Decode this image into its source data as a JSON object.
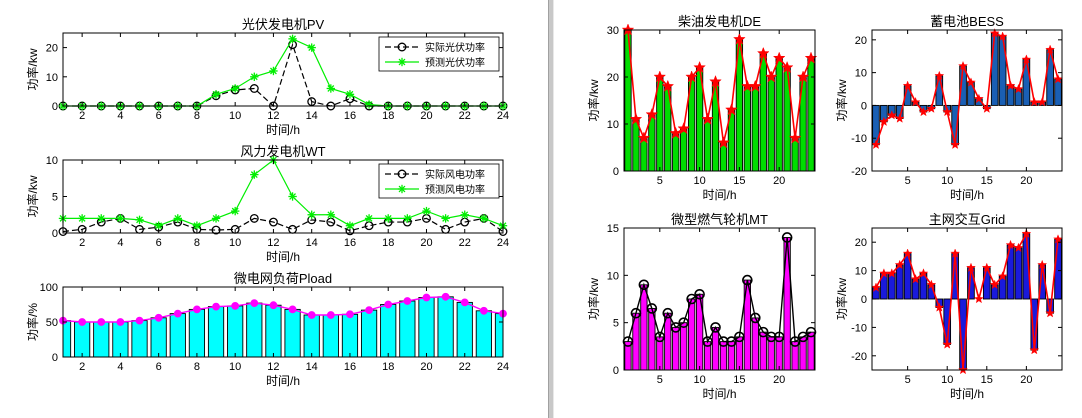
{
  "chart_data": [
    {
      "id": "pv",
      "type": "line",
      "title": "光伏发电机PV",
      "xlabel": "时间/h",
      "ylabel": "功率/kw",
      "x": [
        1,
        2,
        3,
        4,
        5,
        6,
        7,
        8,
        9,
        10,
        11,
        12,
        13,
        14,
        15,
        16,
        17,
        18,
        19,
        20,
        21,
        22,
        23,
        24
      ],
      "xlim": [
        1,
        24
      ],
      "ylim": [
        0,
        25
      ],
      "xticks": [
        2,
        4,
        6,
        8,
        10,
        12,
        14,
        16,
        18,
        20,
        22,
        24
      ],
      "yticks": [
        0,
        10,
        20
      ],
      "legend": "top-right",
      "series": [
        {
          "name": "实际光伏功率",
          "marker": "circle",
          "color": "#000000",
          "dash": true,
          "values": [
            0,
            0,
            0,
            0,
            0,
            0,
            0,
            0,
            3.5,
            5.5,
            6,
            0,
            21,
            1.5,
            0,
            2.5,
            0,
            0,
            0,
            0,
            0,
            0,
            0,
            0
          ]
        },
        {
          "name": "预测光伏功率",
          "marker": "star",
          "color": "#00ee00",
          "dash": false,
          "values": [
            0,
            0,
            0,
            0,
            0,
            0,
            0,
            0,
            4,
            6,
            10,
            12,
            23,
            20,
            6,
            4,
            0.5,
            0,
            0,
            0,
            0,
            0,
            0,
            0
          ]
        }
      ]
    },
    {
      "id": "wt",
      "type": "line",
      "title": "风力发电机WT",
      "xlabel": "时间/h",
      "ylabel": "功率/kw",
      "x": [
        1,
        2,
        3,
        4,
        5,
        6,
        7,
        8,
        9,
        10,
        11,
        12,
        13,
        14,
        15,
        16,
        17,
        18,
        19,
        20,
        21,
        22,
        23,
        24
      ],
      "xlim": [
        1,
        24
      ],
      "ylim": [
        0,
        10
      ],
      "xticks": [
        2,
        4,
        6,
        8,
        10,
        12,
        14,
        16,
        18,
        20,
        22,
        24
      ],
      "yticks": [
        0,
        5,
        10
      ],
      "legend": "top-right",
      "series": [
        {
          "name": "实际风电功率",
          "marker": "circle",
          "color": "#000000",
          "dash": true,
          "values": [
            0.2,
            0.5,
            1.5,
            2,
            0.5,
            0.8,
            1.5,
            0.5,
            0.4,
            0.5,
            2,
            1.5,
            0.5,
            1.8,
            1.5,
            0.3,
            1,
            1.5,
            1.5,
            2,
            0.5,
            1.5,
            2,
            0.2
          ]
        },
        {
          "name": "预测风电功率",
          "marker": "star",
          "color": "#00ee00",
          "dash": false,
          "values": [
            2,
            2,
            2,
            2,
            1.8,
            1,
            2,
            1,
            2,
            3,
            8,
            10,
            5,
            2.5,
            2.5,
            1,
            2,
            2,
            2,
            3,
            2,
            2.5,
            2,
            1
          ]
        }
      ]
    },
    {
      "id": "pload",
      "type": "bar",
      "title": "微电网负荷Pload",
      "xlabel": "时间/h",
      "ylabel": "功率/%",
      "x": [
        1,
        2,
        3,
        4,
        5,
        6,
        7,
        8,
        9,
        10,
        11,
        12,
        13,
        14,
        15,
        16,
        17,
        18,
        19,
        20,
        21,
        22,
        23,
        24
      ],
      "xlim": [
        1,
        24
      ],
      "ylim": [
        0,
        100
      ],
      "xticks": [
        2,
        4,
        6,
        8,
        10,
        12,
        14,
        16,
        18,
        20,
        22,
        24
      ],
      "yticks": [
        0,
        50,
        100
      ],
      "bar_color": "#00ffff",
      "line_color": "#ff00ff",
      "values": [
        52,
        50,
        50,
        50,
        52,
        56,
        62,
        68,
        72,
        73,
        77,
        74,
        68,
        60,
        60,
        61,
        67,
        75,
        80,
        85,
        86,
        78,
        66,
        62
      ]
    },
    {
      "id": "de",
      "type": "bar",
      "title": "柴油发电机DE",
      "xlabel": "时间/h",
      "ylabel": "功率/kw",
      "x": [
        1,
        2,
        3,
        4,
        5,
        6,
        7,
        8,
        9,
        10,
        11,
        12,
        13,
        14,
        15,
        16,
        17,
        18,
        19,
        20,
        21,
        22,
        23,
        24
      ],
      "xlim": [
        0.5,
        24.5
      ],
      "ylim": [
        0,
        30
      ],
      "xticks": [
        5,
        10,
        15,
        20
      ],
      "yticks": [
        0,
        10,
        20,
        30
      ],
      "bar_color": "#00dd00",
      "line_color": "#ff0000",
      "values": [
        30,
        11,
        7,
        12,
        20,
        18,
        8,
        9,
        20,
        22,
        11,
        19,
        6,
        13,
        28,
        18,
        18,
        25,
        20,
        24,
        22,
        7,
        20,
        24
      ]
    },
    {
      "id": "bess",
      "type": "bar",
      "title": "蓄电池BESS",
      "xlabel": "时间/h",
      "ylabel": "功率/kw",
      "x": [
        1,
        2,
        3,
        4,
        5,
        6,
        7,
        8,
        9,
        10,
        11,
        12,
        13,
        14,
        15,
        16,
        17,
        18,
        19,
        20,
        21,
        22,
        23,
        24
      ],
      "xlim": [
        0.5,
        24.5
      ],
      "ylim": [
        -20,
        23
      ],
      "xticks": [
        5,
        10,
        15,
        20
      ],
      "yticks": [
        -20,
        -10,
        0,
        10,
        20
      ],
      "bar_color": "#1a5fb4",
      "line_color": "#ff0000",
      "values": [
        -12,
        -5,
        -3,
        -4,
        6,
        1,
        -2,
        -1,
        9,
        -2,
        -12,
        12,
        7,
        2,
        -1,
        22,
        21,
        6,
        5,
        14,
        1,
        1,
        17,
        8
      ]
    },
    {
      "id": "mt",
      "type": "bar",
      "title": "微型燃气轮机MT",
      "xlabel": "时间/h",
      "ylabel": "功率/kw",
      "x": [
        1,
        2,
        3,
        4,
        5,
        6,
        7,
        8,
        9,
        10,
        11,
        12,
        13,
        14,
        15,
        16,
        17,
        18,
        19,
        20,
        21,
        22,
        23,
        24
      ],
      "xlim": [
        0.5,
        24.5
      ],
      "ylim": [
        0,
        15
      ],
      "xticks": [
        5,
        10,
        15,
        20
      ],
      "yticks": [
        0,
        5,
        10,
        15
      ],
      "bar_color": "#ff00ff",
      "line_color": "#000000",
      "values": [
        3,
        6,
        9,
        6.5,
        3.5,
        6,
        4.5,
        5,
        7.5,
        8,
        3,
        4.5,
        3,
        3,
        3.5,
        9.5,
        5.5,
        4,
        3.5,
        3.5,
        14,
        3,
        3.5,
        4
      ]
    },
    {
      "id": "grid",
      "type": "bar",
      "title": "主网交互Grid",
      "xlabel": "时间/h",
      "ylabel": "功率/kw",
      "x": [
        1,
        2,
        3,
        4,
        5,
        6,
        7,
        8,
        9,
        10,
        11,
        12,
        13,
        14,
        15,
        16,
        17,
        18,
        19,
        20,
        21,
        22,
        23,
        24
      ],
      "xlim": [
        0.5,
        24.5
      ],
      "ylim": [
        -25,
        25
      ],
      "xticks": [
        5,
        10,
        15,
        20
      ],
      "yticks": [
        -20,
        -10,
        0,
        10,
        20
      ],
      "bar_color": "#1a1adb",
      "line_color": "#ff0000",
      "values": [
        4,
        9,
        9,
        12,
        16,
        7,
        9,
        5,
        -3,
        -16,
        16,
        -25,
        11,
        0,
        11,
        5,
        8,
        19,
        18,
        23,
        -18,
        12,
        -5,
        21
      ]
    }
  ]
}
